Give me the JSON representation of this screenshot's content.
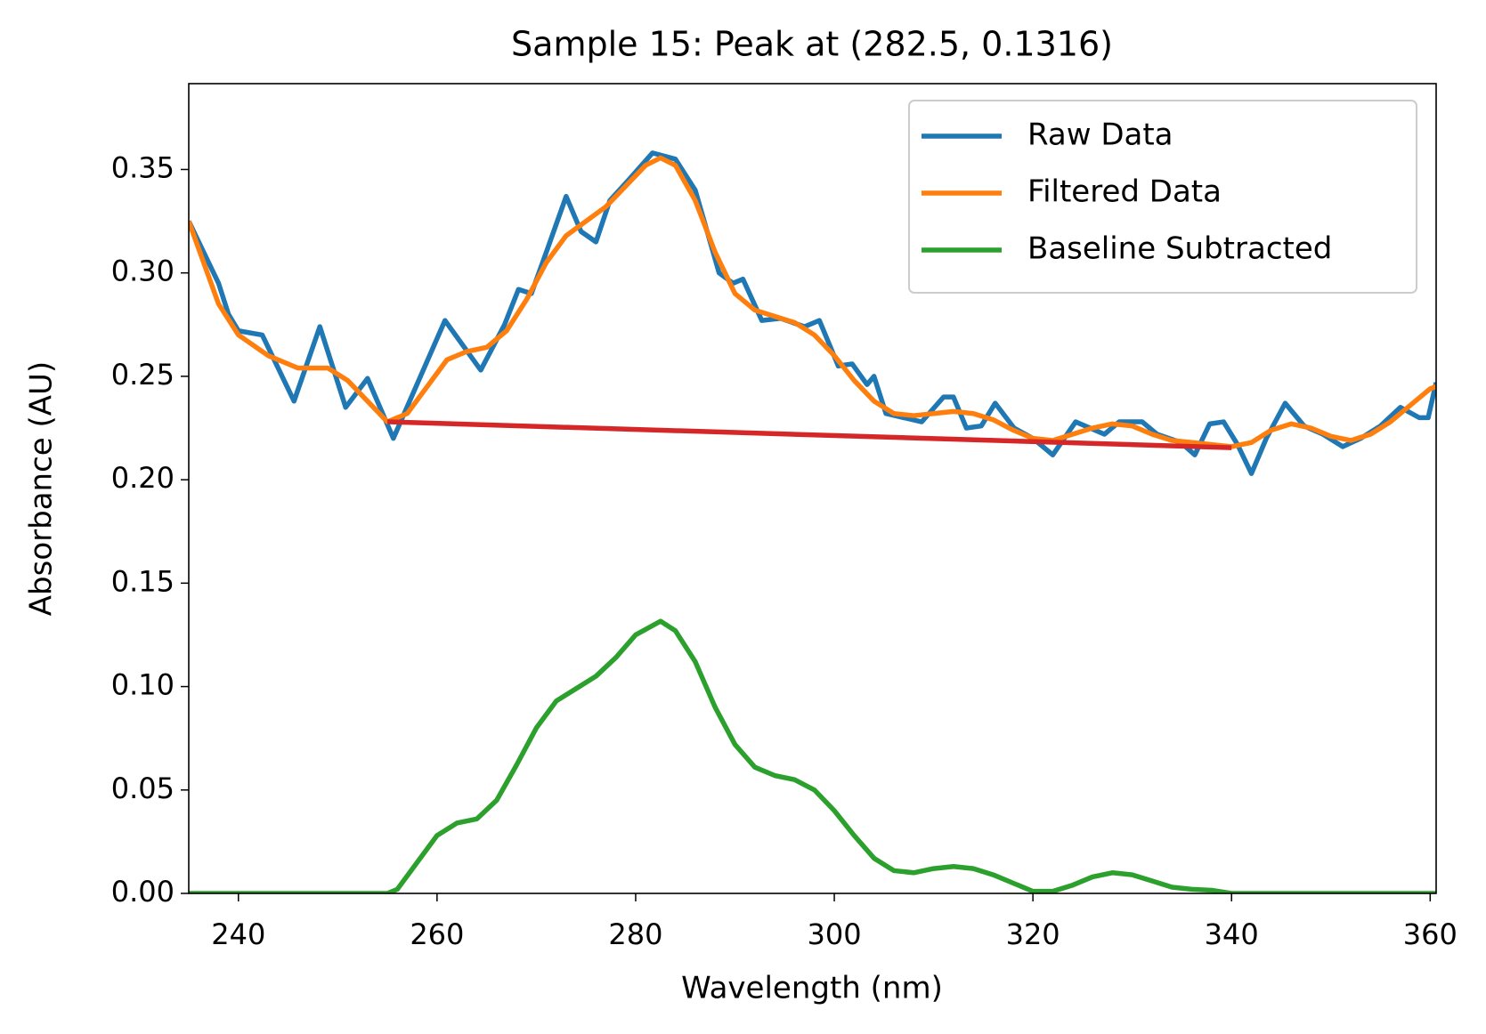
{
  "chart_data": {
    "type": "line",
    "title": "Sample 15: Peak at (282.5, 0.1316)",
    "x_label": "Wavelength (nm)",
    "y_label": "Absorbance (AU)",
    "xlim": [
      235,
      360.6
    ],
    "ylim": [
      0,
      0.3915
    ],
    "xticks": [
      240,
      260,
      280,
      300,
      320,
      340,
      360
    ],
    "yticks": [
      {
        "value": 0,
        "label": "0.00"
      },
      {
        "value": 0.05,
        "label": "0.05"
      },
      {
        "value": 0.1,
        "label": "0.10"
      },
      {
        "value": 0.15,
        "label": "0.15"
      },
      {
        "value": 0.2,
        "label": "0.20"
      },
      {
        "value": 0.25,
        "label": "0.25"
      },
      {
        "value": 0.3,
        "label": "0.30"
      },
      {
        "value": 0.35,
        "label": "0.35"
      }
    ],
    "legend": "upper right",
    "series": [
      {
        "name": "Raw Data",
        "color": "#1f77b4",
        "x": [
          235,
          236,
          237,
          238,
          239,
          240,
          242.4,
          245.6,
          248.2,
          250.8,
          253,
          255.6,
          260.8,
          264.4,
          266.8,
          268.2,
          269.5,
          271,
          273,
          274.5,
          276,
          277.4,
          279.3,
          281.7,
          284,
          286,
          288.4,
          289.8,
          290.8,
          292.7,
          294.6,
          297,
          298.5,
          300.4,
          301.8,
          303.3,
          304,
          305.2,
          307,
          308.8,
          311,
          312,
          313.3,
          314.8,
          316.2,
          318.1,
          320,
          322,
          324.3,
          327.2,
          328.7,
          331,
          332.5,
          334.9,
          336.3,
          337.8,
          339.2,
          340.6,
          342,
          343.5,
          345.4,
          347.3,
          349.2,
          351.2,
          353,
          355,
          357,
          358.9,
          359.8,
          360.6
        ],
        "values": [
          0.325,
          0.315,
          0.305,
          0.295,
          0.28,
          0.272,
          0.27,
          0.238,
          0.274,
          0.235,
          0.249,
          0.22,
          0.277,
          0.253,
          0.275,
          0.292,
          0.29,
          0.31,
          0.337,
          0.32,
          0.315,
          0.335,
          0.345,
          0.358,
          0.355,
          0.34,
          0.3,
          0.295,
          0.297,
          0.277,
          0.278,
          0.274,
          0.277,
          0.255,
          0.256,
          0.246,
          0.25,
          0.232,
          0.23,
          0.228,
          0.24,
          0.24,
          0.225,
          0.226,
          0.237,
          0.225,
          0.22,
          0.212,
          0.228,
          0.222,
          0.228,
          0.228,
          0.222,
          0.218,
          0.212,
          0.227,
          0.228,
          0.217,
          0.203,
          0.22,
          0.237,
          0.226,
          0.222,
          0.216,
          0.22,
          0.226,
          0.235,
          0.23,
          0.23,
          0.247
        ]
      },
      {
        "name": "Filtered Data",
        "color": "#ff7f0e",
        "x": [
          235,
          238,
          240,
          243,
          246,
          249,
          251,
          253,
          255,
          257,
          259,
          261,
          263,
          265,
          267,
          269,
          271,
          273,
          275,
          277,
          279,
          281,
          282.5,
          284,
          286,
          288,
          290,
          292,
          294,
          296,
          298,
          300,
          302,
          304,
          306,
          308,
          310,
          312,
          314,
          316,
          318,
          320,
          322,
          324,
          326,
          328,
          330,
          332,
          334,
          336,
          338,
          340,
          342,
          344,
          346,
          348,
          350,
          352,
          354,
          356,
          358,
          360,
          360.6
        ],
        "values": [
          0.325,
          0.285,
          0.27,
          0.26,
          0.254,
          0.254,
          0.248,
          0.238,
          0.228,
          0.232,
          0.245,
          0.258,
          0.262,
          0.264,
          0.272,
          0.287,
          0.305,
          0.318,
          0.325,
          0.332,
          0.342,
          0.352,
          0.3556,
          0.352,
          0.335,
          0.31,
          0.29,
          0.282,
          0.279,
          0.276,
          0.27,
          0.26,
          0.248,
          0.238,
          0.232,
          0.231,
          0.232,
          0.233,
          0.232,
          0.229,
          0.224,
          0.22,
          0.219,
          0.222,
          0.225,
          0.227,
          0.226,
          0.222,
          0.219,
          0.218,
          0.217,
          0.216,
          0.218,
          0.224,
          0.227,
          0.225,
          0.221,
          0.219,
          0.222,
          0.228,
          0.236,
          0.244,
          0.245
        ]
      },
      {
        "name": "Baseline Subtracted",
        "color": "#2ca02c",
        "x": [
          235,
          255,
          256,
          258,
          260,
          262,
          264,
          266,
          268,
          270,
          272,
          274,
          276,
          278,
          280,
          282.5,
          284,
          286,
          288,
          290,
          292,
          294,
          296,
          298,
          300,
          302,
          304,
          306,
          308,
          310,
          312,
          314,
          316,
          318,
          320,
          322,
          324,
          326,
          328,
          330,
          332,
          334,
          336,
          338,
          340,
          360.6
        ],
        "values": [
          0,
          0,
          0.002,
          0.015,
          0.028,
          0.034,
          0.036,
          0.045,
          0.062,
          0.08,
          0.093,
          0.099,
          0.105,
          0.114,
          0.125,
          0.1316,
          0.127,
          0.112,
          0.09,
          0.072,
          0.061,
          0.057,
          0.055,
          0.05,
          0.04,
          0.028,
          0.017,
          0.011,
          0.01,
          0.012,
          0.013,
          0.012,
          0.009,
          0.005,
          0.001,
          0.001,
          0.004,
          0.008,
          0.01,
          0.009,
          0.006,
          0.003,
          0.002,
          0.0015,
          0,
          0
        ]
      },
      {
        "color": "#d62728",
        "x": [
          255,
          340
        ],
        "values": [
          0.228,
          0.2155
        ]
      }
    ]
  }
}
